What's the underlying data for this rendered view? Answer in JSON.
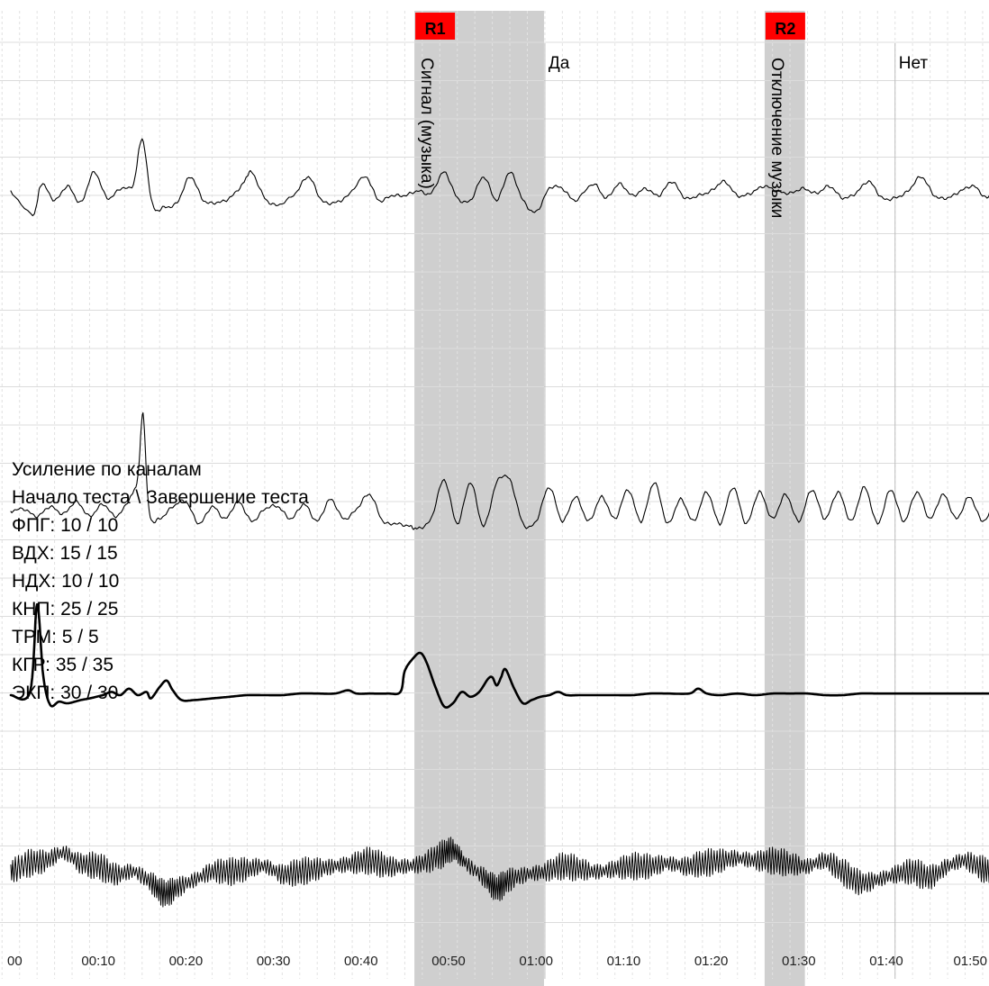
{
  "chart_data": {
    "type": "line",
    "title": "",
    "xlabel": "",
    "ylabel": "",
    "grid": true,
    "x_ticks": [
      "00",
      "00:10",
      "00:20",
      "00:30",
      "00:40",
      "00:50",
      "01:00",
      "01:10",
      "01:20",
      "01:30",
      "01:40",
      "01:50"
    ],
    "x_tick_seconds": [
      0,
      10,
      20,
      30,
      40,
      50,
      60,
      70,
      80,
      90,
      100,
      110
    ],
    "markers": [
      {
        "id": "R1",
        "label": "Сигнал (музыка)",
        "start": 46.1,
        "end": 60.9,
        "color": "#ff0000"
      },
      {
        "id": "R2",
        "label": "Отключение музыки",
        "start": 86.1,
        "end": 90.7,
        "color": "#ff0000"
      }
    ],
    "annotations": [
      {
        "text": "Да",
        "x": 61.0
      },
      {
        "text": "Нет",
        "x": 101.0
      }
    ],
    "gain_legend": {
      "heading": "Усиление по каналам",
      "subheading": "Начало теста \\ Завершение теста",
      "channels": [
        {
          "name": "ФПГ",
          "start": 10,
          "end": 10,
          "text": "ФПГ: 10 / 10"
        },
        {
          "name": "ВДХ",
          "start": 15,
          "end": 15,
          "text": "ВДХ: 15 / 15"
        },
        {
          "name": "НДХ",
          "start": 10,
          "end": 10,
          "text": "НДХ: 10 / 10"
        },
        {
          "name": "КНП",
          "start": 25,
          "end": 25,
          "text": "КНП: 25 / 25"
        },
        {
          "name": "ТРМ",
          "start": 5,
          "end": 5,
          "text": "ТРМ: 5 / 5"
        },
        {
          "name": "КГР",
          "start": 35,
          "end": 35,
          "text": "КГР: 35 / 35"
        },
        {
          "name": "ЭКП",
          "start": 30,
          "end": 30,
          "text": "ЭКП: 30 / 30"
        }
      ]
    },
    "series": [
      {
        "style": "breathing",
        "values": [
          [
            0.0,
            0.0
          ],
          [
            2.5,
            -1.0
          ],
          [
            3.5,
            0.3
          ],
          [
            5.0,
            -0.4
          ],
          [
            6.5,
            0.2
          ],
          [
            8.0,
            -0.5
          ],
          [
            9.5,
            0.8
          ],
          [
            11.0,
            -0.3
          ],
          [
            12.5,
            0.1
          ],
          [
            14.0,
            0.3
          ],
          [
            15.0,
            2.2
          ],
          [
            16.2,
            -0.6
          ],
          [
            17.5,
            -0.7
          ],
          [
            19.0,
            -0.5
          ],
          [
            20.5,
            0.6
          ],
          [
            22.0,
            -0.4
          ],
          [
            23.5,
            -0.5
          ],
          [
            25.0,
            -0.3
          ],
          [
            26.5,
            0.3
          ],
          [
            27.5,
            0.8
          ],
          [
            29.0,
            -0.3
          ],
          [
            30.5,
            -0.6
          ],
          [
            32.5,
            -0.1
          ],
          [
            34.0,
            0.6
          ],
          [
            35.5,
            -0.4
          ],
          [
            37.0,
            -0.5
          ],
          [
            38.5,
            -0.2
          ],
          [
            40.5,
            0.6
          ],
          [
            42.0,
            -0.4
          ],
          [
            43.5,
            -0.2
          ],
          [
            45.0,
            -0.2
          ],
          [
            46.5,
            0.0
          ],
          [
            48.0,
            -0.1
          ],
          [
            49.5,
            0.8
          ],
          [
            51.0,
            -0.3
          ],
          [
            52.5,
            -0.4
          ],
          [
            54.0,
            0.6
          ],
          [
            55.5,
            -0.4
          ],
          [
            57.0,
            0.8
          ],
          [
            58.5,
            -0.4
          ],
          [
            60.0,
            -0.9
          ],
          [
            61.5,
            0.1
          ],
          [
            63.0,
            0.1
          ],
          [
            64.5,
            -0.4
          ],
          [
            66.5,
            0.3
          ],
          [
            68.0,
            -0.3
          ],
          [
            69.5,
            0.3
          ],
          [
            71.0,
            -0.2
          ],
          [
            72.5,
            0.1
          ],
          [
            74.0,
            -0.2
          ],
          [
            75.5,
            0.4
          ],
          [
            77.0,
            -0.3
          ],
          [
            78.5,
            -0.2
          ],
          [
            80.0,
            0.0
          ],
          [
            81.5,
            0.4
          ],
          [
            83.0,
            -0.2
          ],
          [
            84.5,
            -0.1
          ],
          [
            86.0,
            0.2
          ],
          [
            87.5,
            0.0
          ],
          [
            89.0,
            -0.1
          ],
          [
            90.5,
            0.1
          ],
          [
            92.0,
            -0.1
          ],
          [
            93.5,
            0.2
          ],
          [
            95.0,
            -0.3
          ],
          [
            96.5,
            -0.1
          ],
          [
            98.0,
            0.4
          ],
          [
            99.5,
            -0.3
          ],
          [
            101.0,
            -0.3
          ],
          [
            102.5,
            0.0
          ],
          [
            104.0,
            0.6
          ],
          [
            105.5,
            -0.2
          ],
          [
            107.0,
            -0.3
          ],
          [
            108.5,
            0.0
          ],
          [
            110.0,
            0.2
          ],
          [
            111.5,
            -0.3
          ],
          [
            112.5,
            0.4
          ]
        ]
      },
      {
        "style": "breathing-deep",
        "values": [
          [
            0.0,
            0.0
          ],
          [
            1.5,
            0.1
          ],
          [
            3.0,
            -0.2
          ],
          [
            4.5,
            0.2
          ],
          [
            6.0,
            -0.1
          ],
          [
            7.5,
            0.4
          ],
          [
            9.0,
            -0.2
          ],
          [
            10.5,
            0.3
          ],
          [
            12.0,
            -0.2
          ],
          [
            13.5,
            0.5
          ],
          [
            14.5,
            1.4
          ],
          [
            15.1,
            4.0
          ],
          [
            15.8,
            0.0
          ],
          [
            17.0,
            -0.3
          ],
          [
            18.5,
            0.2
          ],
          [
            20.0,
            0.4
          ],
          [
            21.5,
            -0.5
          ],
          [
            23.0,
            0.2
          ],
          [
            24.5,
            -0.3
          ],
          [
            26.0,
            0.4
          ],
          [
            27.5,
            -0.4
          ],
          [
            29.0,
            0.1
          ],
          [
            30.5,
            0.2
          ],
          [
            32.0,
            -0.3
          ],
          [
            33.5,
            0.3
          ],
          [
            35.0,
            -0.4
          ],
          [
            36.5,
            0.5
          ],
          [
            38.0,
            -0.3
          ],
          [
            39.5,
            0.1
          ],
          [
            41.0,
            0.7
          ],
          [
            42.5,
            -0.4
          ],
          [
            44.0,
            -0.5
          ],
          [
            45.5,
            -0.6
          ],
          [
            46.5,
            -0.7
          ],
          [
            48.0,
            -0.3
          ],
          [
            49.5,
            1.3
          ],
          [
            51.0,
            -0.5
          ],
          [
            52.5,
            1.2
          ],
          [
            54.0,
            -0.6
          ],
          [
            55.5,
            1.2
          ],
          [
            57.0,
            1.3
          ],
          [
            58.5,
            -0.5
          ],
          [
            60.0,
            -0.4
          ],
          [
            61.5,
            1.0
          ],
          [
            63.0,
            -0.4
          ],
          [
            64.5,
            0.6
          ],
          [
            66.0,
            -0.4
          ],
          [
            67.5,
            0.6
          ],
          [
            69.0,
            -0.3
          ],
          [
            70.5,
            0.9
          ],
          [
            72.0,
            -0.4
          ],
          [
            73.5,
            1.2
          ],
          [
            75.0,
            -0.5
          ],
          [
            76.5,
            0.5
          ],
          [
            78.0,
            -0.4
          ],
          [
            79.5,
            0.8
          ],
          [
            81.0,
            -0.5
          ],
          [
            82.5,
            1.0
          ],
          [
            84.0,
            -0.5
          ],
          [
            85.5,
            0.8
          ],
          [
            87.0,
            -0.3
          ],
          [
            88.5,
            0.7
          ],
          [
            90.0,
            -0.4
          ],
          [
            91.5,
            0.9
          ],
          [
            93.0,
            -0.3
          ],
          [
            94.5,
            0.8
          ],
          [
            96.0,
            -0.4
          ],
          [
            97.5,
            1.0
          ],
          [
            99.0,
            -0.5
          ],
          [
            100.5,
            0.9
          ],
          [
            102.0,
            -0.4
          ],
          [
            103.5,
            0.8
          ],
          [
            105.0,
            -0.3
          ],
          [
            106.5,
            0.7
          ],
          [
            108.0,
            -0.3
          ],
          [
            109.5,
            0.6
          ],
          [
            111.0,
            -0.4
          ],
          [
            112.5,
            0.5
          ]
        ]
      },
      {
        "style": "thick",
        "values": [
          [
            0.0,
            0.0
          ],
          [
            2.2,
            0.2
          ],
          [
            3.0,
            5.6
          ],
          [
            3.7,
            1.2
          ],
          [
            4.5,
            -0.6
          ],
          [
            5.5,
            -0.4
          ],
          [
            6.5,
            -0.5
          ],
          [
            8.0,
            -0.3
          ],
          [
            9.0,
            -0.2
          ],
          [
            10.5,
            0.0
          ],
          [
            11.5,
            0.2
          ],
          [
            12.5,
            0.0
          ],
          [
            13.5,
            0.4
          ],
          [
            14.5,
            0.0
          ],
          [
            15.5,
            0.2
          ],
          [
            16.0,
            -0.2
          ],
          [
            17.0,
            0.5
          ],
          [
            17.8,
            0.9
          ],
          [
            18.5,
            0.3
          ],
          [
            19.5,
            -0.3
          ],
          [
            21.0,
            -0.3
          ],
          [
            23.0,
            -0.2
          ],
          [
            25.0,
            -0.1
          ],
          [
            27.0,
            0.0
          ],
          [
            29.0,
            0.0
          ],
          [
            31.0,
            0.0
          ],
          [
            33.0,
            0.1
          ],
          [
            35.0,
            0.1
          ],
          [
            37.0,
            0.1
          ],
          [
            38.5,
            0.3
          ],
          [
            39.5,
            0.1
          ],
          [
            41.0,
            0.1
          ],
          [
            43.0,
            0.1
          ],
          [
            44.5,
            0.2
          ],
          [
            45.0,
            1.5
          ],
          [
            46.0,
            2.3
          ],
          [
            46.8,
            2.6
          ],
          [
            47.5,
            2.0
          ],
          [
            48.5,
            0.5
          ],
          [
            49.5,
            -0.7
          ],
          [
            50.5,
            -0.5
          ],
          [
            51.5,
            0.2
          ],
          [
            52.5,
            -0.1
          ],
          [
            53.5,
            0.2
          ],
          [
            54.5,
            1.0
          ],
          [
            55.0,
            1.1
          ],
          [
            55.5,
            0.6
          ],
          [
            56.0,
            1.1
          ],
          [
            56.5,
            1.6
          ],
          [
            57.5,
            0.4
          ],
          [
            58.5,
            -0.5
          ],
          [
            59.5,
            -0.3
          ],
          [
            60.5,
            -0.1
          ],
          [
            61.5,
            0.0
          ],
          [
            62.5,
            0.2
          ],
          [
            63.5,
            0.0
          ],
          [
            65.0,
            0.0
          ],
          [
            67.0,
            0.0
          ],
          [
            69.0,
            0.0
          ],
          [
            71.0,
            0.0
          ],
          [
            73.0,
            0.1
          ],
          [
            75.0,
            0.1
          ],
          [
            77.5,
            0.1
          ],
          [
            78.5,
            0.4
          ],
          [
            79.5,
            0.1
          ],
          [
            81.0,
            0.0
          ],
          [
            83.0,
            0.1
          ],
          [
            85.0,
            0.0
          ],
          [
            87.0,
            0.1
          ],
          [
            89.0,
            0.1
          ],
          [
            91.0,
            0.1
          ],
          [
            93.0,
            0.0
          ],
          [
            95.0,
            0.0
          ],
          [
            97.0,
            0.1
          ],
          [
            99.0,
            0.1
          ],
          [
            101.0,
            0.1
          ],
          [
            103.0,
            0.1
          ],
          [
            105.0,
            0.1
          ],
          [
            107.0,
            0.1
          ],
          [
            109.0,
            0.1
          ],
          [
            111.0,
            0.1
          ],
          [
            112.5,
            0.1
          ]
        ]
      },
      {
        "style": "tremor",
        "values": [
          [
            0.0,
            0.0
          ],
          [
            2.0,
            0.3
          ],
          [
            4.0,
            0.4
          ],
          [
            6.0,
            0.7
          ],
          [
            8.0,
            0.3
          ],
          [
            10.0,
            0.2
          ],
          [
            12.0,
            -0.1
          ],
          [
            14.0,
            0.0
          ],
          [
            16.0,
            -0.4
          ],
          [
            17.5,
            -0.8
          ],
          [
            19.0,
            -0.6
          ],
          [
            21.0,
            -0.3
          ],
          [
            23.0,
            0.0
          ],
          [
            25.0,
            0.0
          ],
          [
            27.0,
            0.1
          ],
          [
            29.0,
            0.2
          ],
          [
            31.0,
            -0.1
          ],
          [
            33.0,
            0.0
          ],
          [
            35.0,
            0.1
          ],
          [
            37.0,
            0.2
          ],
          [
            39.0,
            0.3
          ],
          [
            41.0,
            0.4
          ],
          [
            43.0,
            0.2
          ],
          [
            45.0,
            0.2
          ],
          [
            47.0,
            0.3
          ],
          [
            49.0,
            0.6
          ],
          [
            50.5,
            0.8
          ],
          [
            52.0,
            0.3
          ],
          [
            54.0,
            -0.2
          ],
          [
            55.5,
            -0.6
          ],
          [
            57.0,
            -0.3
          ],
          [
            59.0,
            -0.1
          ],
          [
            61.0,
            0.0
          ],
          [
            63.0,
            0.2
          ],
          [
            65.0,
            0.1
          ],
          [
            67.0,
            0.0
          ],
          [
            69.0,
            0.1
          ],
          [
            71.0,
            0.2
          ],
          [
            73.0,
            0.2
          ],
          [
            75.0,
            0.3
          ],
          [
            77.0,
            0.2
          ],
          [
            79.0,
            0.3
          ],
          [
            81.0,
            0.4
          ],
          [
            83.0,
            0.5
          ],
          [
            85.0,
            0.4
          ],
          [
            87.0,
            0.4
          ],
          [
            89.0,
            0.3
          ],
          [
            91.0,
            0.2
          ],
          [
            93.0,
            0.4
          ],
          [
            95.0,
            0.0
          ],
          [
            97.0,
            -0.4
          ],
          [
            99.0,
            -0.3
          ],
          [
            101.0,
            -0.1
          ],
          [
            103.0,
            0.0
          ],
          [
            105.0,
            -0.2
          ],
          [
            107.0,
            0.2
          ],
          [
            109.0,
            0.4
          ],
          [
            111.0,
            0.1
          ],
          [
            112.5,
            0.0
          ]
        ]
      }
    ]
  }
}
